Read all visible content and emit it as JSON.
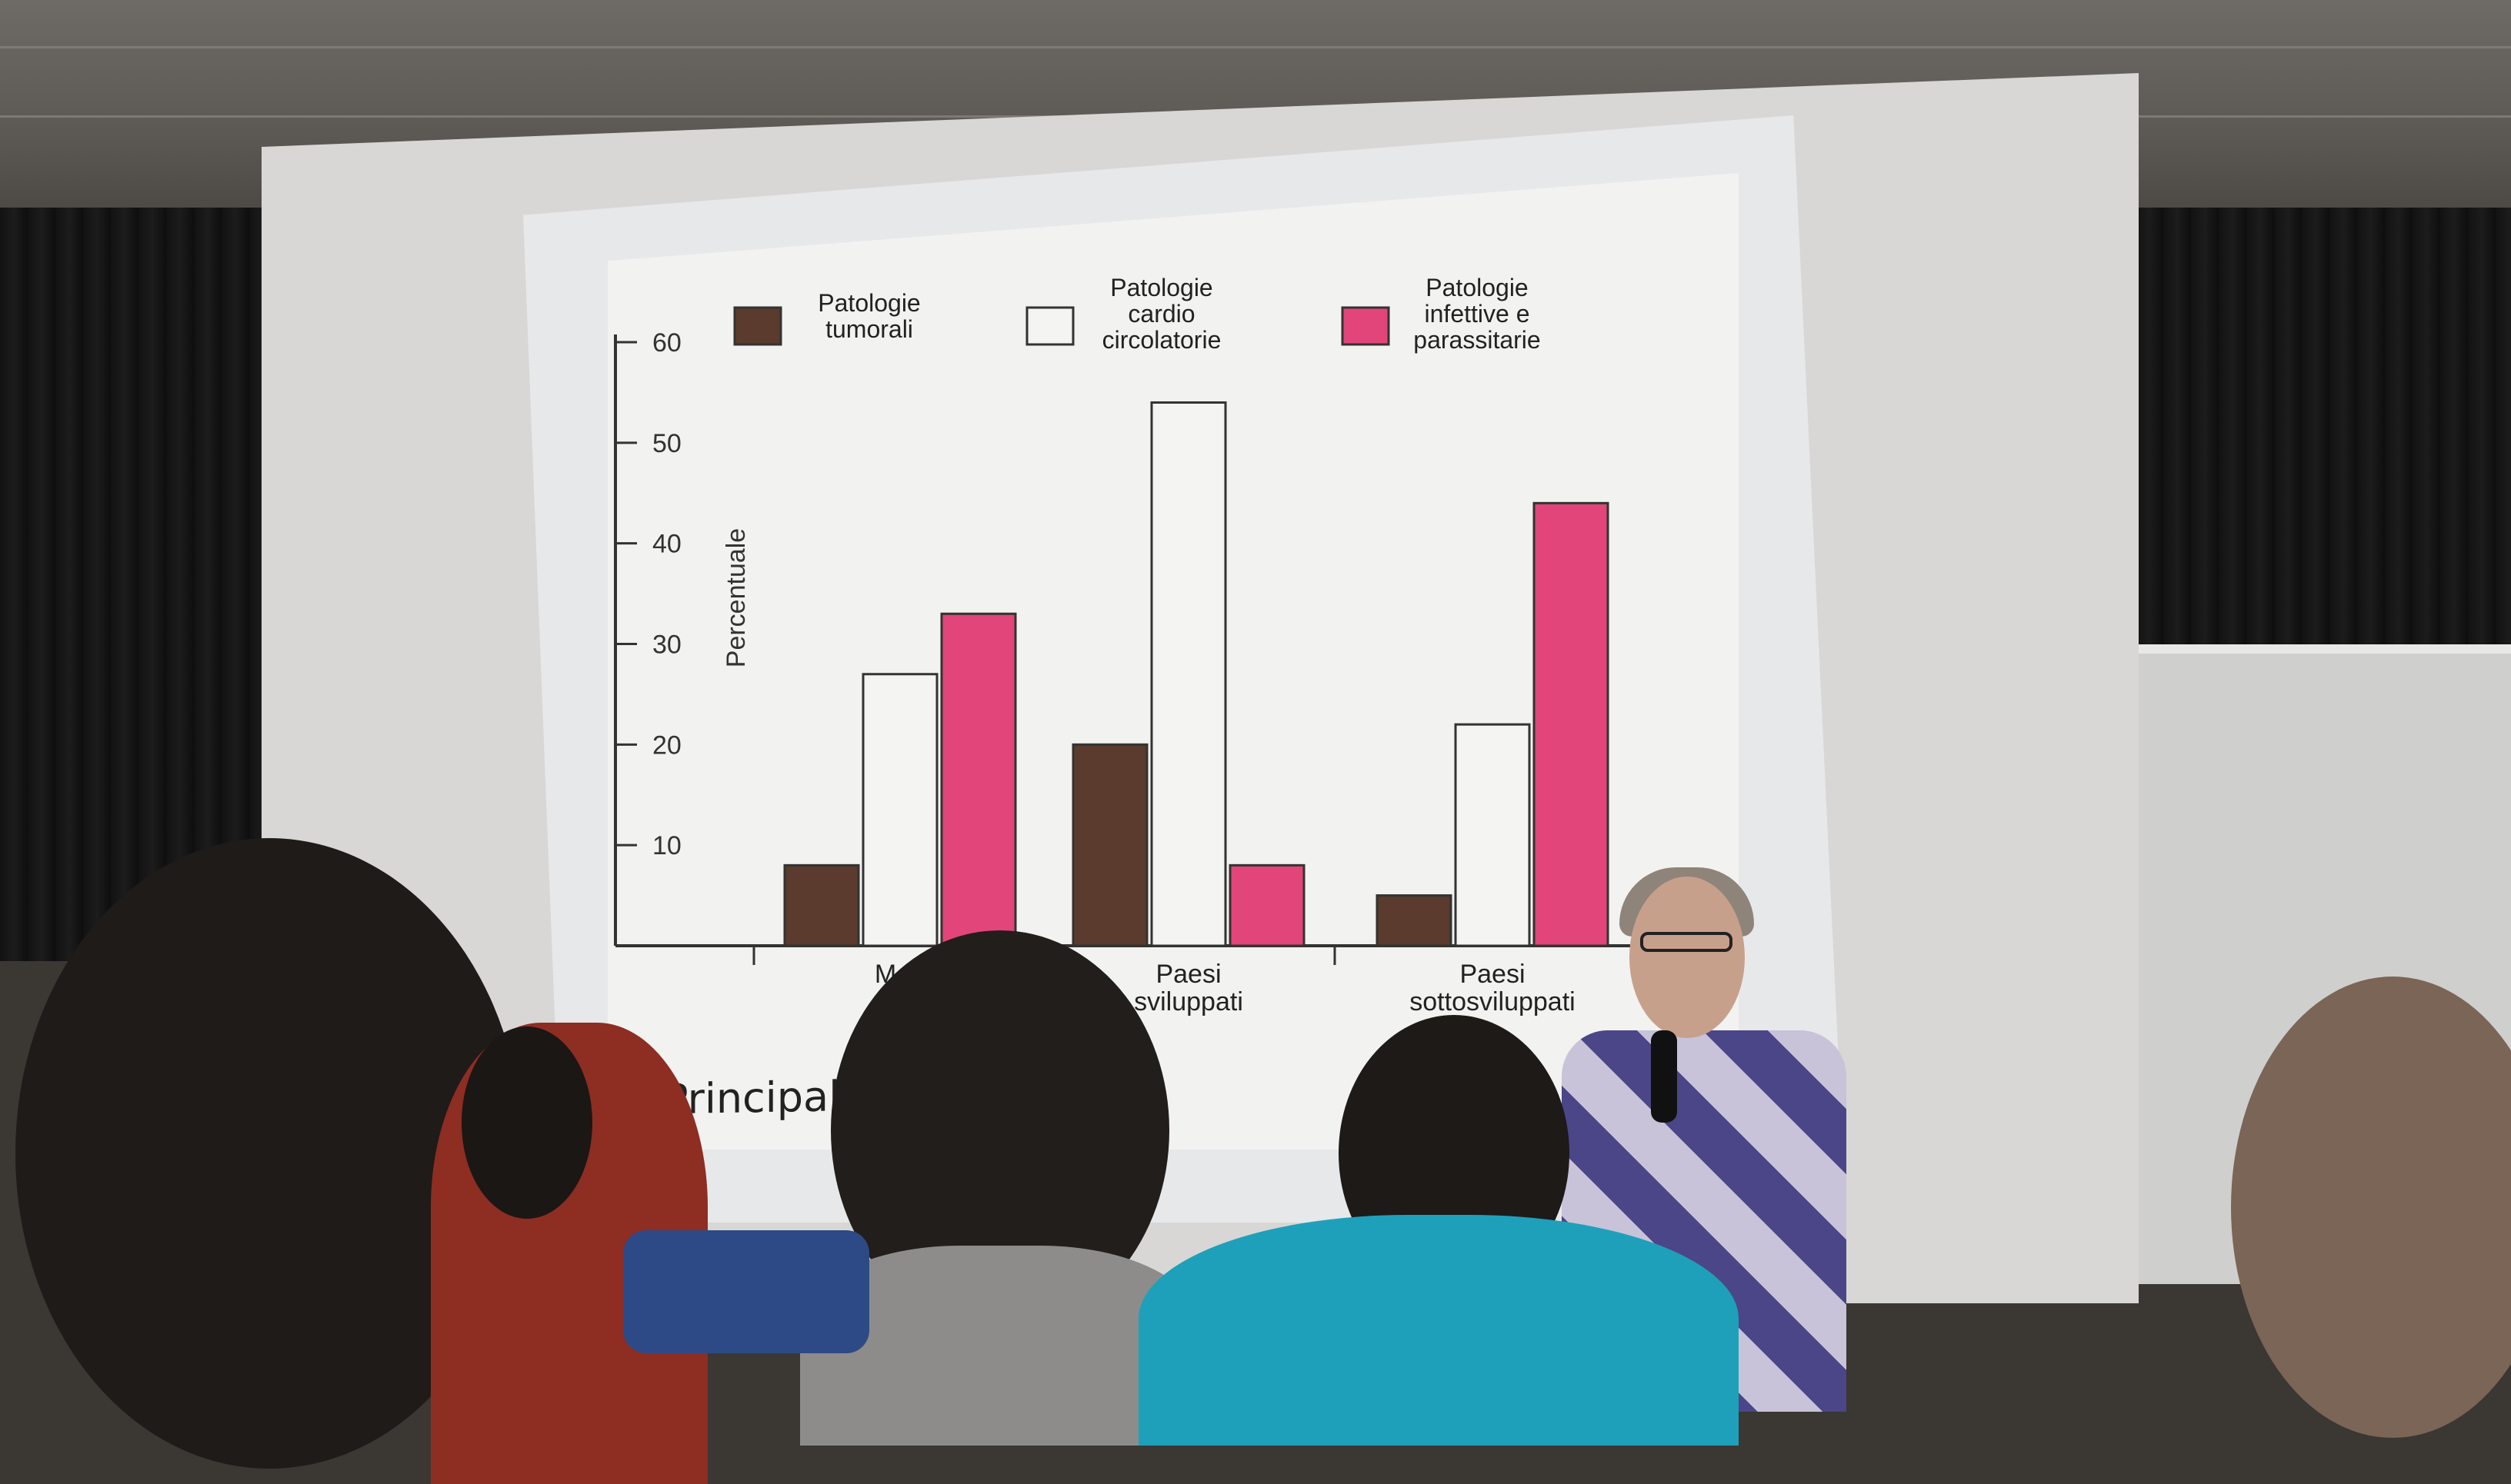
{
  "photo": {
    "caption_visible": "Principali ... alità nel ..."
  },
  "chart_data": {
    "type": "bar",
    "title": "",
    "ylabel": "Percentuale",
    "xlabel": "",
    "ylim": [
      0,
      60
    ],
    "yticks": [
      "10",
      "20",
      "30",
      "40",
      "50",
      "60"
    ],
    "categories": [
      "Mon…",
      "Paesi sviluppati",
      "Paesi sottosviluppati"
    ],
    "category_labels_visible": [
      [
        "Mon"
      ],
      [
        "Paesi",
        "sviluppati"
      ],
      [
        "Paesi",
        "sottosviluppati"
      ]
    ],
    "legend_position": "top",
    "series": [
      {
        "name": "Patologie tumorali",
        "name_lines": [
          "Patologie",
          "tumorali"
        ],
        "color": "#5a3b2e",
        "values": [
          8,
          20,
          5
        ]
      },
      {
        "name": "Patologie cardio circolatorie",
        "name_lines": [
          "Patologie",
          "cardio",
          "circolatorie"
        ],
        "color": "#f4f4f2",
        "values": [
          27,
          54,
          22
        ]
      },
      {
        "name": "Patologie infettive e parassitarie",
        "name_lines": [
          "Patologie",
          "infettive e",
          "parassitarie"
        ],
        "color": "#e2457a",
        "values": [
          33,
          8,
          44
        ]
      }
    ]
  },
  "colors": {
    "slide_background": "#f2f2f0",
    "axis": "#333333",
    "speaker_sweater": "#4b4688"
  }
}
